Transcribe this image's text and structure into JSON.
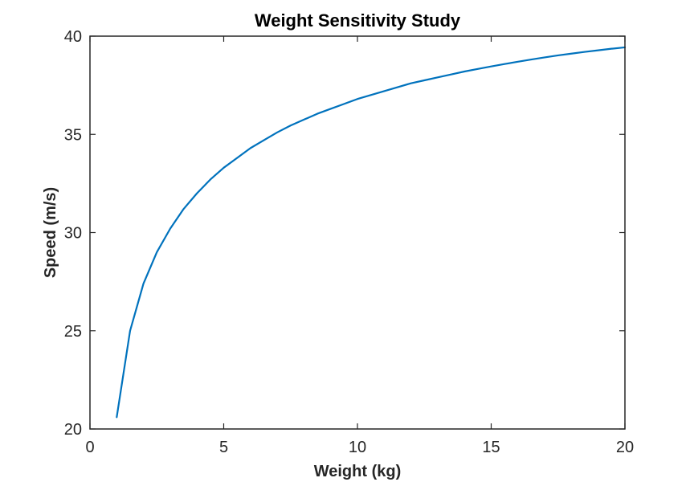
{
  "chart_data": {
    "type": "line",
    "title": "Weight Sensitivity Study",
    "xlabel": "Weight (kg)",
    "ylabel": "Speed (m/s)",
    "xlim": [
      0,
      20
    ],
    "ylim": [
      20,
      40
    ],
    "xticks": [
      0,
      5,
      10,
      15,
      20
    ],
    "yticks": [
      20,
      25,
      30,
      35,
      40
    ],
    "grid": false,
    "series": [
      {
        "color": "#0072BD",
        "x": [
          1,
          1.5,
          2,
          2.5,
          3,
          3.5,
          4,
          4.5,
          5,
          5.5,
          6,
          6.5,
          7,
          7.5,
          8,
          8.5,
          9,
          9.5,
          10,
          10.5,
          11,
          11.5,
          12,
          12.5,
          13,
          13.5,
          14,
          14.5,
          15,
          15.5,
          16,
          16.5,
          17,
          17.5,
          18,
          18.5,
          19,
          19.5,
          20
        ],
        "y": [
          20.6,
          25.0,
          27.4,
          29.0,
          30.2,
          31.2,
          32.0,
          32.7,
          33.3,
          33.8,
          34.3,
          34.7,
          35.1,
          35.45,
          35.75,
          36.05,
          36.3,
          36.55,
          36.8,
          37.0,
          37.2,
          37.4,
          37.6,
          37.75,
          37.9,
          38.05,
          38.2,
          38.33,
          38.46,
          38.58,
          38.7,
          38.81,
          38.92,
          39.02,
          39.11,
          39.2,
          39.28,
          39.36,
          39.43
        ]
      }
    ]
  }
}
